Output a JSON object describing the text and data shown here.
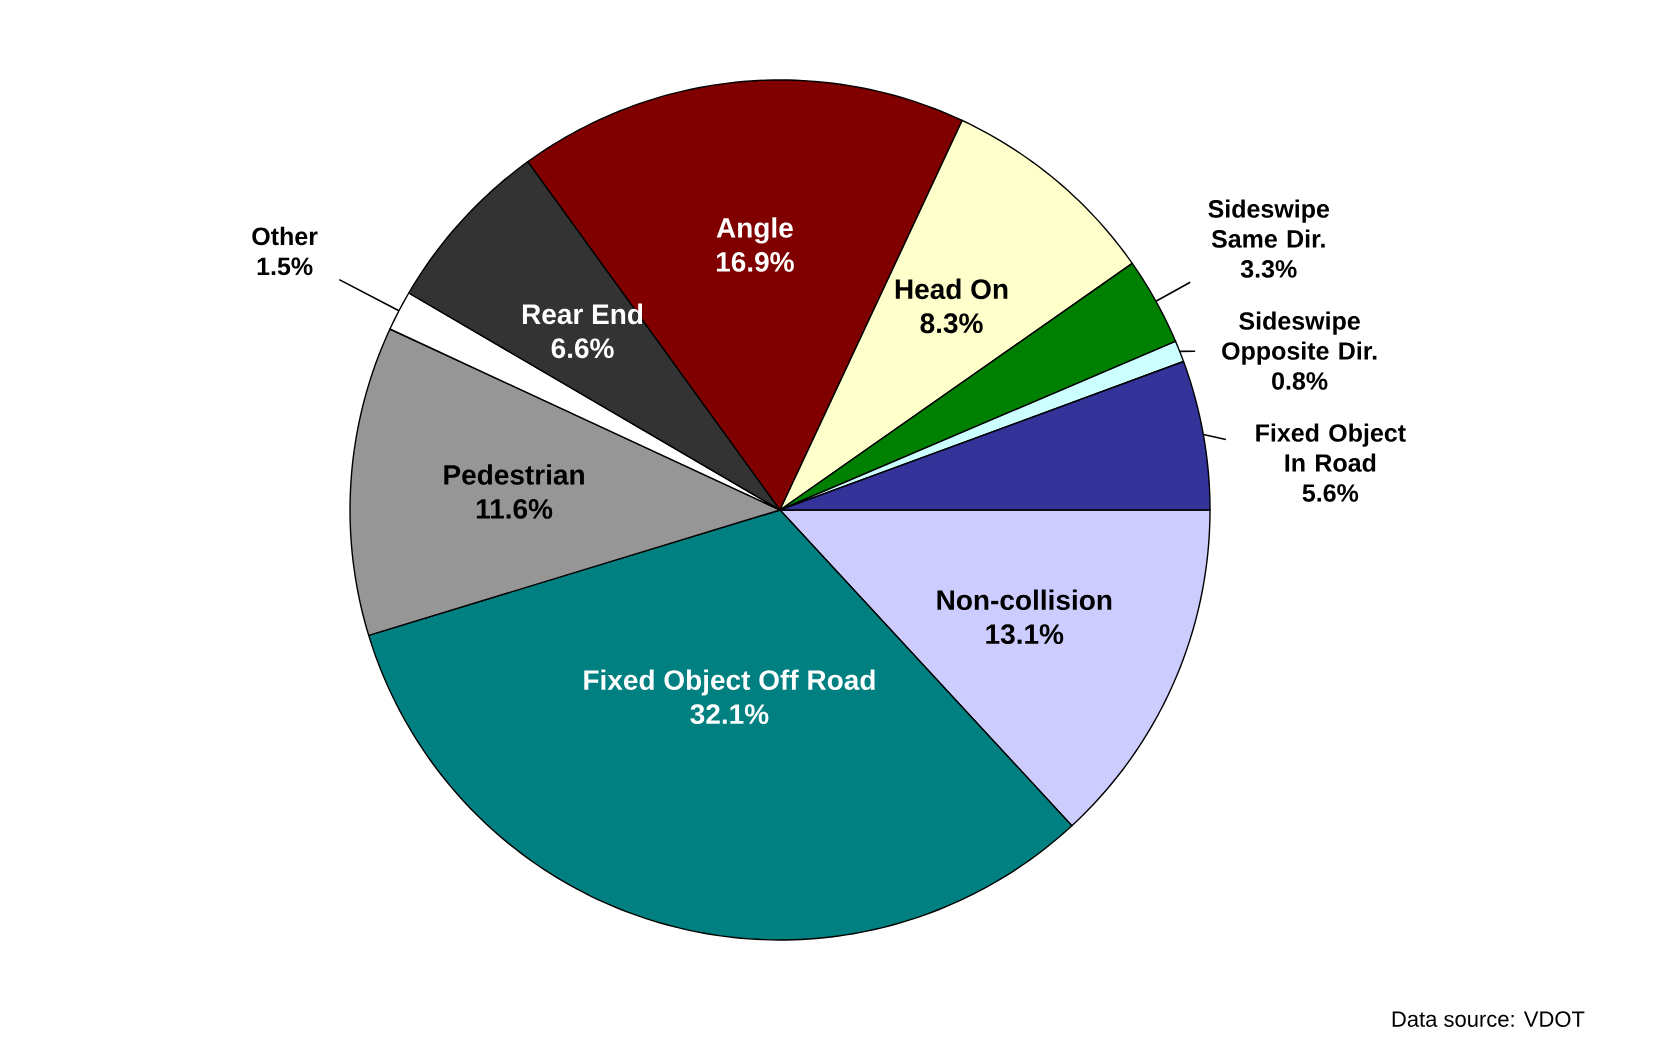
{
  "chart_data": {
    "type": "pie",
    "categories": [
      "Non-collision",
      "Fixed Object Off Road",
      "Pedestrian",
      "Other",
      "Rear End",
      "Angle",
      "Head On",
      "Sideswipe Same Dir.",
      "Sideswipe Opposite Dir.",
      "Fixed Object In Road"
    ],
    "values": [
      13.1,
      32.1,
      11.6,
      1.5,
      6.6,
      16.9,
      8.3,
      3.3,
      0.8,
      5.6
    ],
    "colors": [
      "#ccccff",
      "#008080",
      "#969696",
      "#ffffff",
      "#333333",
      "#800000",
      "#ffffcc",
      "#008000",
      "#ccffff",
      "#333399"
    ],
    "value_labels": [
      "13.1%",
      "32.1%",
      "11.6%",
      "1.5%",
      "6.6%",
      "16.9%",
      "8.3%",
      "3.3%",
      "0.8%",
      "5.6%"
    ],
    "annotations": [
      "Data source: VDOT"
    ]
  }
}
